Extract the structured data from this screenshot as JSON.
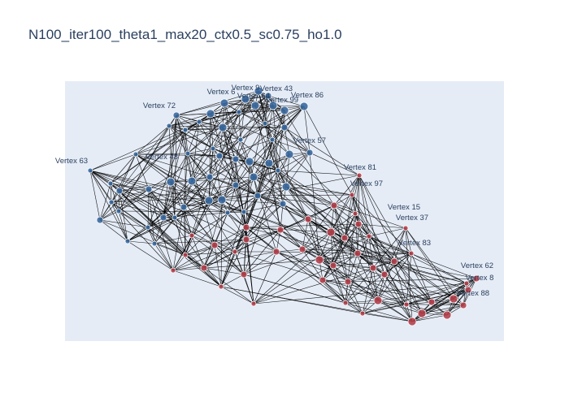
{
  "title": "N100_iter100_theta1_max20_ctx0.5_sc0.75_ho1.0",
  "colors": {
    "plot_background": "#e5ecf6",
    "edge": "#000000",
    "node_blue": "#3b6aa0",
    "node_red": "#b5414e",
    "label": "#2a3f5f"
  },
  "labels": [
    "Vertex 9",
    "Vertex 43",
    "Vertex 6",
    "Vertex 64",
    "Vertex 86",
    "Vertex 99",
    "Vertex 72",
    "Vertex 57",
    "Vertex 63",
    "Vertex 48",
    "Vertex 81",
    "Vertex 97",
    "Vertex 15",
    "Vertex 37",
    "Vertex 83",
    "Vertex 62",
    "Vertex 88",
    "Vertex 8"
  ]
}
